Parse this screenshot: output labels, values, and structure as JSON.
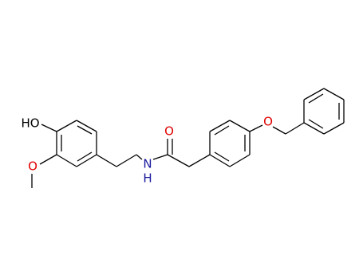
{
  "atoms": [
    {
      "label": "HO"
    },
    {
      "label": "O"
    },
    {
      "label": "N"
    },
    {
      "label": "H"
    },
    {
      "label": "O"
    },
    {
      "label": "O"
    }
  ]
}
